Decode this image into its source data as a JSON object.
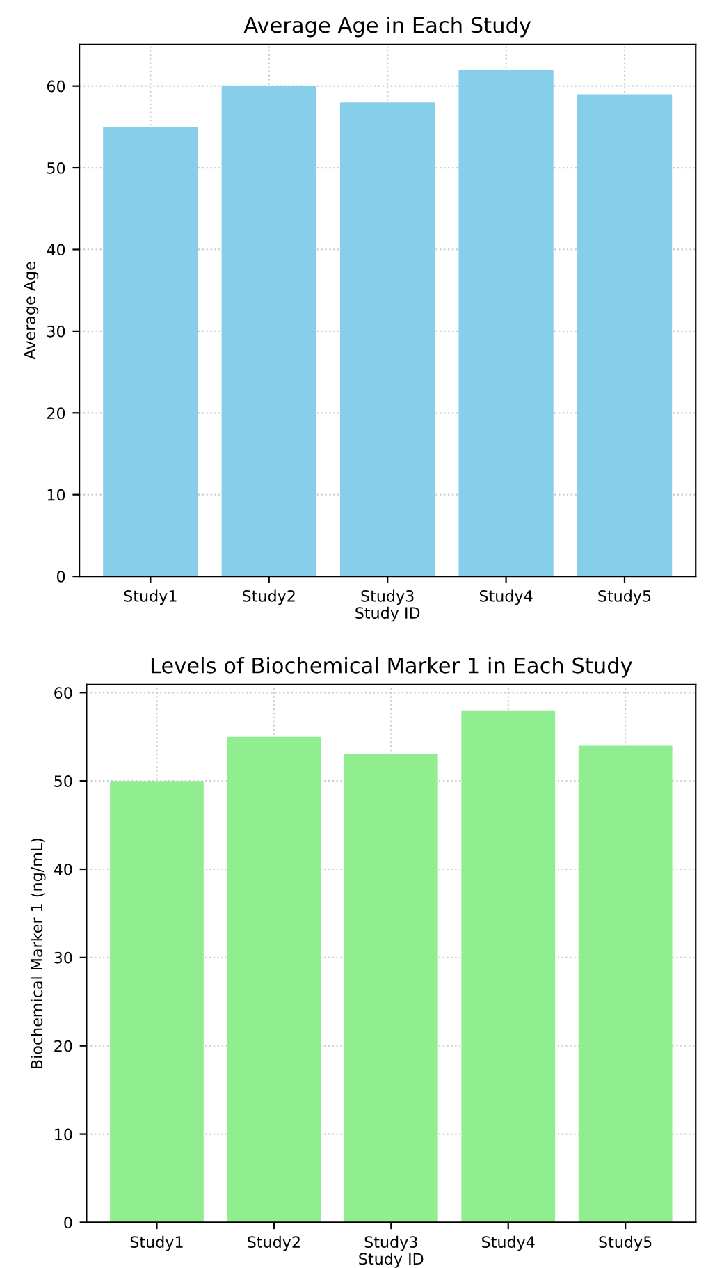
{
  "chart_data": [
    {
      "type": "bar",
      "title": "Average Age in Each Study",
      "xlabel": "Study ID",
      "ylabel": "Average Age",
      "categories": [
        "Study1",
        "Study2",
        "Study3",
        "Study4",
        "Study5"
      ],
      "series": [
        {
          "color": "#87ceeb",
          "values": [
            55,
            60,
            58,
            62,
            59
          ]
        }
      ],
      "ylim": [
        0,
        65.1
      ],
      "yticks": [
        0,
        10,
        20,
        30,
        40,
        50,
        60
      ],
      "grid": true
    },
    {
      "type": "bar",
      "title": "Levels of Biochemical Marker 1 in Each Study",
      "xlabel": "Study ID",
      "ylabel": "Biochemical Marker 1 (ng/mL)",
      "categories": [
        "Study1",
        "Study2",
        "Study3",
        "Study4",
        "Study5"
      ],
      "series": [
        {
          "color": "#90ee90",
          "values": [
            50,
            55,
            53,
            58,
            54
          ]
        }
      ],
      "ylim": [
        0,
        60.9
      ],
      "yticks": [
        0,
        10,
        20,
        30,
        40,
        50,
        60
      ],
      "grid": true
    }
  ]
}
